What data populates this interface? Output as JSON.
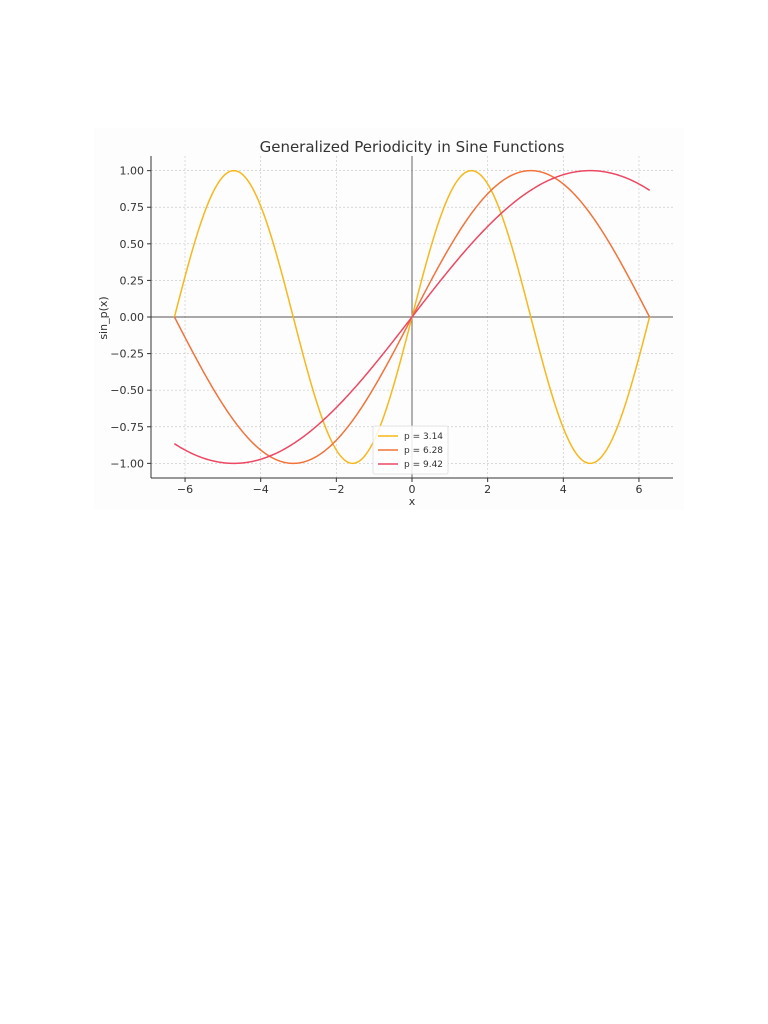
{
  "chart_data": {
    "type": "line",
    "title": "Generalized Periodicity in Sine Functions",
    "xlabel": "x",
    "ylabel": "sin_p(x)",
    "xlim": [
      -6.9,
      6.9
    ],
    "ylim": [
      -1.1,
      1.1
    ],
    "x_ticks": [
      -6,
      -4,
      -2,
      0,
      2,
      4,
      6
    ],
    "x_tick_labels": [
      "−6",
      "−4",
      "−2",
      "0",
      "2",
      "4",
      "6"
    ],
    "y_ticks": [
      1.0,
      0.75,
      0.5,
      0.25,
      0.0,
      -0.25,
      -0.5,
      -0.75,
      -1.0
    ],
    "y_tick_labels": [
      "1.00",
      "0.75",
      "0.50",
      "0.25",
      "0.00",
      "−0.25",
      "−0.50",
      "−0.75",
      "−1.00"
    ],
    "grid": true,
    "reference_lines": [
      "x = 0",
      "y = 0"
    ],
    "legend_position": "lower-center",
    "x_range": [
      -6.283,
      6.283
    ],
    "series": [
      {
        "name": "p = 3.14",
        "p": 3.14,
        "function": "sin(pi * x / p)",
        "color": "#f6b81c",
        "samples": [
          {
            "x": -6.28,
            "y": 0.0
          },
          {
            "x": -4.71,
            "y": 1.0
          },
          {
            "x": -3.14,
            "y": 0.0
          },
          {
            "x": -1.57,
            "y": -1.0
          },
          {
            "x": 0.0,
            "y": 0.0
          },
          {
            "x": 1.57,
            "y": 1.0
          },
          {
            "x": 3.14,
            "y": 0.0
          },
          {
            "x": 4.71,
            "y": -1.0
          },
          {
            "x": 6.28,
            "y": 0.0
          }
        ]
      },
      {
        "name": "p = 6.28",
        "p": 6.28,
        "function": "sin(pi * x / p)",
        "color": "#f2733a",
        "samples": [
          {
            "x": -6.28,
            "y": 0.0
          },
          {
            "x": -3.14,
            "y": -1.0
          },
          {
            "x": 0.0,
            "y": 0.0
          },
          {
            "x": 3.14,
            "y": 1.0
          },
          {
            "x": 6.28,
            "y": 0.0
          }
        ]
      },
      {
        "name": "p = 9.42",
        "p": 9.42,
        "function": "sin(pi * x / p)",
        "color": "#ec4863",
        "samples": [
          {
            "x": -6.28,
            "y": -0.87
          },
          {
            "x": -4.71,
            "y": -1.0
          },
          {
            "x": 0.0,
            "y": 0.0
          },
          {
            "x": 4.71,
            "y": 1.0
          },
          {
            "x": 6.28,
            "y": 0.87
          }
        ]
      }
    ]
  }
}
